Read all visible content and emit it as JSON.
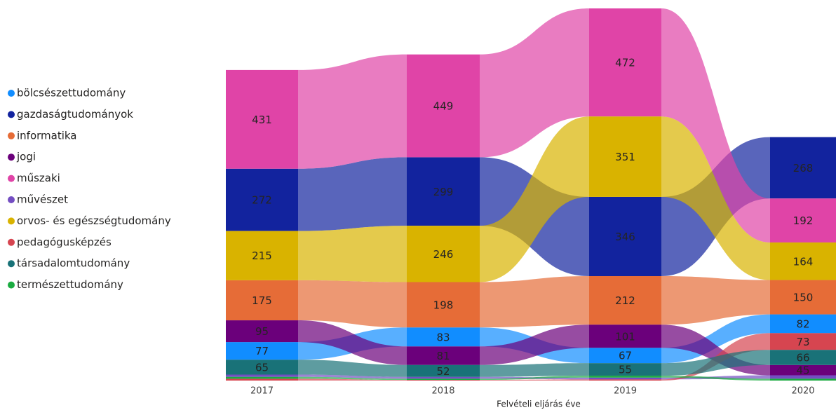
{
  "chart_data": {
    "type": "ribbon",
    "x_title": "Felvételi eljárás éve",
    "categories": [
      "2017",
      "2018",
      "2019",
      "2020"
    ],
    "series": [
      {
        "name": "bölcsészettudomány",
        "color": "#118dff",
        "values": [
          77,
          83,
          67,
          82
        ]
      },
      {
        "name": "gazdaságtudományok",
        "color": "#12239e",
        "values": [
          272,
          299,
          346,
          268
        ]
      },
      {
        "name": "informatika",
        "color": "#e66c37",
        "values": [
          175,
          198,
          212,
          150
        ]
      },
      {
        "name": "jogi",
        "color": "#6b007b",
        "values": [
          95,
          81,
          101,
          45
        ]
      },
      {
        "name": "műszaki",
        "color": "#e044a7",
        "values": [
          431,
          449,
          472,
          192
        ]
      },
      {
        "name": "művészet",
        "color": "#744ec2",
        "values": [
          10,
          8,
          8,
          15
        ]
      },
      {
        "name": "orvos- és egészségtudomány",
        "color": "#d9b300",
        "values": [
          215,
          246,
          351,
          164
        ]
      },
      {
        "name": "pedagógusképzés",
        "color": "#d64550",
        "values": [
          8,
          3,
          5,
          73
        ]
      },
      {
        "name": "társadalomtudomány",
        "color": "#197278",
        "values": [
          65,
          52,
          55,
          66
        ]
      },
      {
        "name": "természettudomány",
        "color": "#1aab40",
        "values": [
          8,
          5,
          8,
          8
        ]
      }
    ],
    "legend": "left"
  }
}
